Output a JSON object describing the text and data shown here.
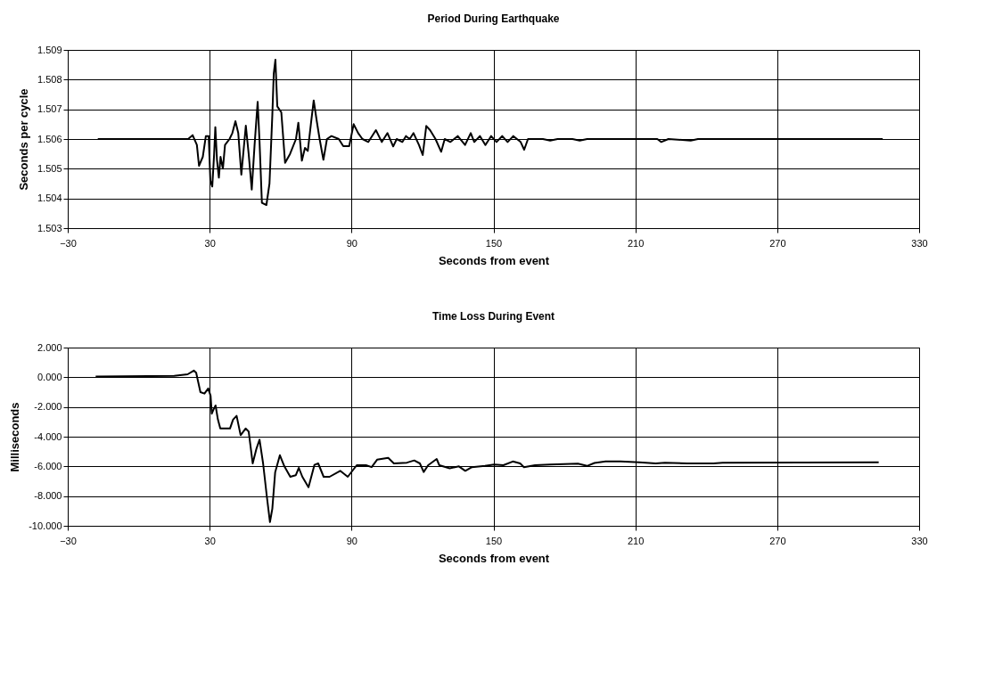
{
  "chart_data": [
    {
      "type": "line",
      "title": "Period During Earthquake",
      "xlabel": "Seconds from event",
      "ylabel": "Seconds per cycle",
      "x": [
        -17.3,
        20.9,
        22.8,
        24.6,
        25.5,
        27.1,
        28.4,
        29.6,
        30.3,
        31.1,
        31.9,
        32.4,
        33.1,
        33.9,
        34.6,
        35.6,
        36.5,
        38.4,
        39.6,
        40.9,
        42.1,
        43.4,
        45.3,
        46.5,
        47.8,
        49.0,
        50.3,
        51.1,
        52.1,
        54.0,
        55.3,
        56.5,
        57.1,
        57.8,
        58.6,
        60.3,
        61.9,
        64.0,
        66.5,
        67.5,
        69.0,
        70.3,
        71.5,
        72.8,
        74.0,
        75.3,
        76.5,
        78.1,
        79.6,
        81.5,
        84.6,
        86.5,
        89.0,
        90.9,
        92.8,
        94.6,
        97.1,
        100.3,
        102.8,
        105.2,
        107.6,
        109.1,
        111.5,
        113.0,
        114.6,
        116.2,
        118.5,
        120.1,
        121.6,
        123.2,
        125.5,
        127.9,
        129.4,
        131.8,
        134.9,
        138.0,
        140.4,
        141.9,
        144.3,
        146.6,
        149.0,
        151.3,
        153.7,
        156.0,
        158.4,
        161.5,
        163.0,
        164.6,
        170.9,
        174.0,
        177.1,
        183.4,
        186.5,
        189.6,
        199.0,
        214.6,
        219.3,
        220.9,
        224.0,
        233.4,
        236.5,
        277.1,
        314.6
      ],
      "series": [
        {
          "color": "#000000",
          "values": [
            1.506,
            1.506,
            1.50613,
            1.5058,
            1.5051,
            1.5054,
            1.5061,
            1.5061,
            1.5046,
            1.5044,
            1.5055,
            1.5064,
            1.5053,
            1.5047,
            1.5054,
            1.505,
            1.5058,
            1.506,
            1.5062,
            1.5066,
            1.5062,
            1.5048,
            1.50645,
            1.5055,
            1.5043,
            1.5058,
            1.50725,
            1.5059,
            1.50385,
            1.50378,
            1.5045,
            1.5068,
            1.5082,
            1.50867,
            1.5071,
            1.5069,
            1.5052,
            1.5055,
            1.506,
            1.50655,
            1.50527,
            1.5057,
            1.5056,
            1.5065,
            1.5073,
            1.5066,
            1.506,
            1.5053,
            1.506,
            1.5061,
            1.506,
            1.50576,
            1.50576,
            1.5065,
            1.5062,
            1.506,
            1.5059,
            1.5063,
            1.5059,
            1.5062,
            1.50575,
            1.506,
            1.5059,
            1.5061,
            1.506,
            1.5062,
            1.5058,
            1.50546,
            1.50644,
            1.5063,
            1.506,
            1.50557,
            1.506,
            1.5059,
            1.5061,
            1.5058,
            1.5062,
            1.5059,
            1.5061,
            1.5058,
            1.5061,
            1.5059,
            1.5061,
            1.5059,
            1.5061,
            1.5059,
            1.50564,
            1.506,
            1.506,
            1.50595,
            1.506,
            1.506,
            1.50595,
            1.506,
            1.506,
            1.506,
            1.506,
            1.5059,
            1.506,
            1.50595,
            1.506,
            1.506,
            1.506
          ]
        }
      ],
      "xlim": [
        -30,
        330
      ],
      "xticks": [
        -30,
        30,
        90,
        150,
        210,
        270,
        330
      ],
      "ylim": [
        1.503,
        1.509
      ],
      "yticks": [
        1.503,
        1.504,
        1.505,
        1.506,
        1.507,
        1.508,
        1.509
      ],
      "grid": true
    },
    {
      "type": "line",
      "title": "Time Loss During Event",
      "xlabel": "Seconds from event",
      "ylabel": "Milliseconds",
      "x": [
        -18.2,
        15.0,
        20.7,
        23.3,
        24.3,
        26.1,
        27.8,
        29.4,
        30.4,
        30.9,
        31.7,
        32.5,
        33.5,
        34.5,
        38.6,
        39.9,
        41.4,
        43.1,
        45.2,
        46.5,
        48.2,
        49.8,
        51.1,
        52.6,
        54.2,
        55.5,
        56.5,
        57.7,
        59.7,
        61.6,
        64.1,
        66.4,
        67.7,
        69.2,
        71.8,
        74.3,
        75.9,
        78.2,
        80.7,
        85.2,
        88.4,
        92.2,
        96.1,
        98.5,
        100.8,
        105.5,
        107.9,
        113.4,
        116.5,
        118.9,
        120.5,
        122.4,
        126.0,
        127.1,
        131.5,
        135.4,
        138.1,
        140.9,
        146.4,
        150.3,
        154.2,
        158.2,
        161.3,
        162.9,
        167.6,
        173.9,
        185.7,
        189.6,
        192.7,
        197.4,
        203.7,
        211.6,
        218.6,
        222.5,
        232.0,
        243.0,
        246.9,
        312.9
      ],
      "series": [
        {
          "color": "#000000",
          "values": [
            0.05,
            0.1,
            0.2,
            0.45,
            0.3,
            -1.0,
            -1.1,
            -0.75,
            -1.25,
            -2.45,
            -2.15,
            -1.9,
            -2.85,
            -3.45,
            -3.45,
            -2.85,
            -2.6,
            -3.9,
            -3.45,
            -3.65,
            -5.8,
            -4.8,
            -4.2,
            -5.8,
            -8.05,
            -9.75,
            -8.85,
            -6.4,
            -5.25,
            -6.0,
            -6.7,
            -6.6,
            -6.1,
            -6.7,
            -7.4,
            -5.9,
            -5.8,
            -6.7,
            -6.7,
            -6.3,
            -6.7,
            -5.92,
            -5.92,
            -6.05,
            -5.55,
            -5.42,
            -5.8,
            -5.75,
            -5.6,
            -5.8,
            -6.38,
            -5.92,
            -5.5,
            -5.92,
            -6.13,
            -6.0,
            -6.3,
            -6.05,
            -5.97,
            -5.87,
            -5.92,
            -5.67,
            -5.8,
            -6.05,
            -5.92,
            -5.87,
            -5.82,
            -5.97,
            -5.77,
            -5.67,
            -5.67,
            -5.72,
            -5.8,
            -5.75,
            -5.8,
            -5.8,
            -5.75,
            -5.72
          ]
        }
      ],
      "xlim": [
        -30,
        330
      ],
      "xticks": [
        -30,
        30,
        90,
        150,
        210,
        270,
        330
      ],
      "ylim": [
        -10,
        2
      ],
      "yticks": [
        {
          "value": -10,
          "label": "-10.000"
        },
        {
          "value": -8,
          "label": "-8.000"
        },
        {
          "value": -6,
          "label": "-6.000"
        },
        {
          "value": -4,
          "label": "-4.000"
        },
        {
          "value": -2,
          "label": "-2.000"
        },
        {
          "value": 0,
          "label": "0.000"
        },
        {
          "value": 2,
          "label": "2.000"
        }
      ],
      "grid": true
    }
  ]
}
